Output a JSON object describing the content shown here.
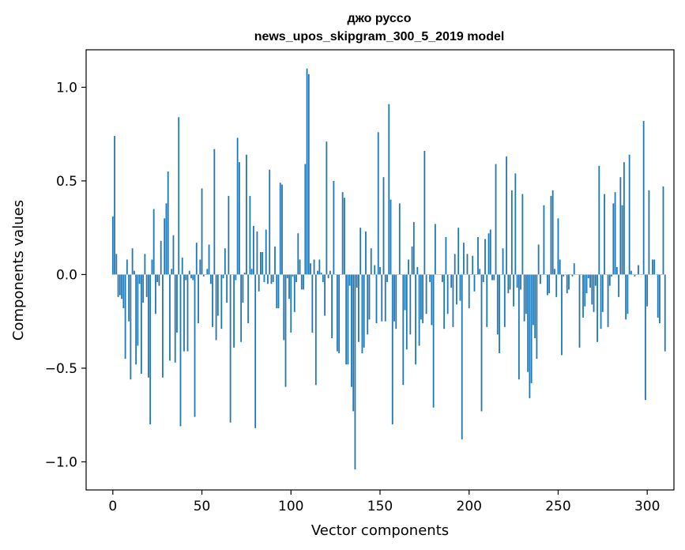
{
  "chart_data": {
    "type": "bar",
    "title": "джо руссо",
    "subtitle": "news_upos_skipgram_300_5_2019 model",
    "xlabel": "Vector components",
    "ylabel": "Components values",
    "xlim": [
      -15,
      315
    ],
    "ylim": [
      -1.15,
      1.2
    ],
    "xticks": [
      0,
      50,
      100,
      150,
      200,
      250,
      300
    ],
    "xtick_labels": [
      "0",
      "50",
      "100",
      "150",
      "200",
      "250",
      "300"
    ],
    "yticks": [
      -1.0,
      -0.5,
      0.0,
      0.5,
      1.0
    ],
    "ytick_labels": [
      "−1.0",
      "−0.5",
      "0.0",
      "0.5",
      "1.0"
    ],
    "grid": false,
    "color": "#1f77b4",
    "values": [
      0.31,
      0.74,
      0.11,
      -0.12,
      -0.11,
      -0.13,
      -0.18,
      -0.45,
      0.08,
      -0.25,
      -0.56,
      0.14,
      0.02,
      -0.48,
      -0.38,
      -0.05,
      -0.53,
      -0.15,
      0.11,
      -0.12,
      -0.55,
      -0.8,
      0.08,
      0.35,
      -0.21,
      -0.04,
      -0.06,
      0.18,
      -0.55,
      0.3,
      0.38,
      0.55,
      -0.46,
      0.03,
      0.21,
      -0.47,
      -0.31,
      0.84,
      -0.81,
      0.09,
      -0.41,
      -0.03,
      -0.41,
      0.02,
      -0.02,
      -0.03,
      -0.76,
      0.17,
      -0.26,
      0.08,
      0.46,
      -0.01,
      0.0,
      0.03,
      0.16,
      -0.05,
      -0.28,
      0.67,
      -0.35,
      -0.22,
      0.0,
      -0.29,
      -0.02,
      0.14,
      -0.15,
      0.42,
      -0.79,
      0.0,
      -0.39,
      -0.03,
      0.73,
      0.6,
      -0.36,
      -0.15,
      0.01,
      0.64,
      -0.26,
      0.42,
      0.03,
      0.26,
      -0.82,
      0.23,
      -0.09,
      0.12,
      0.12,
      -0.04,
      0.24,
      -0.05,
      0.56,
      -0.05,
      -0.04,
      0.15,
      -0.18,
      -0.18,
      0.49,
      0.48,
      -0.35,
      -0.6,
      -0.02,
      -0.13,
      -0.31,
      -0.01,
      -0.2,
      -0.04,
      0.22,
      0.08,
      -0.08,
      -0.08,
      0.59,
      1.1,
      1.07,
      0.06,
      -0.31,
      0.08,
      -0.59,
      0.02,
      0.08,
      0.01,
      -0.04,
      -0.22,
      0.71,
      -0.02,
      0.02,
      -0.34,
      0.5,
      0.0,
      -0.41,
      -0.42,
      0.0,
      0.44,
      0.41,
      -0.48,
      -0.48,
      -0.06,
      -0.6,
      -0.73,
      -1.04,
      -0.07,
      -0.36,
      0.25,
      -0.42,
      -0.39,
      0.23,
      -0.32,
      -0.24,
      0.14,
      0.0,
      0.05,
      -0.26,
      0.76,
      0.04,
      -0.25,
      0.52,
      -0.25,
      -0.04,
      0.91,
      0.4,
      -0.8,
      -0.25,
      -0.29,
      0.0,
      0.38,
      0.0,
      -0.59,
      -0.19,
      -0.4,
      0.08,
      -0.32,
      0.15,
      0.28,
      -0.48,
      0.04,
      -0.38,
      -0.24,
      -0.26,
      0.66,
      -0.21,
      0.0,
      -0.04,
      -0.27,
      -0.71,
      0.27,
      0.0,
      0.0,
      0.0,
      -0.04,
      -0.29,
      0.2,
      -0.21,
      0.0,
      -0.07,
      -0.28,
      0.11,
      -0.16,
      0.25,
      -0.14,
      -0.88,
      0.17,
      0.0,
      0.11,
      -0.18,
      0.0,
      0.1,
      -0.09,
      0.0,
      0.2,
      0.03,
      -0.73,
      -0.04,
      0.19,
      -0.28,
      0.22,
      0.24,
      -0.03,
      -0.03,
      0.59,
      -0.32,
      -0.42,
      0.0,
      0.14,
      -0.28,
      0.63,
      -0.1,
      -0.08,
      0.45,
      -0.17,
      0.54,
      -0.07,
      -0.56,
      -0.08,
      0.43,
      -0.25,
      -0.21,
      -0.52,
      -0.66,
      -0.58,
      -0.27,
      -0.34,
      -0.45,
      0.16,
      -0.05,
      0.0,
      0.37,
      0.0,
      -0.11,
      -0.1,
      0.42,
      0.45,
      0.03,
      -0.12,
      0.3,
      0.08,
      -0.43,
      -0.01,
      0.0,
      -0.1,
      -0.08,
      0.0,
      -0.01,
      0.06,
      0.0,
      0.0,
      -0.39,
      0.0,
      -0.23,
      -0.17,
      -0.1,
      -0.02,
      -0.07,
      -0.16,
      -0.2,
      -0.06,
      -0.36,
      0.58,
      -0.29,
      -0.2,
      0.43,
      0.0,
      -0.28,
      -0.06,
      -0.01,
      0.38,
      0.44,
      0.04,
      -0.12,
      0.52,
      0.37,
      0.6,
      -0.24,
      -0.21,
      0.64,
      0.02,
      0.0,
      -0.01,
      0.0,
      0.05,
      0.0,
      0.0,
      0.82,
      -0.67,
      -0.17,
      0.45,
      0.0,
      0.08,
      0.08,
      0.0,
      -0.23,
      -0.26,
      0.0,
      0.47,
      -0.41
    ]
  }
}
